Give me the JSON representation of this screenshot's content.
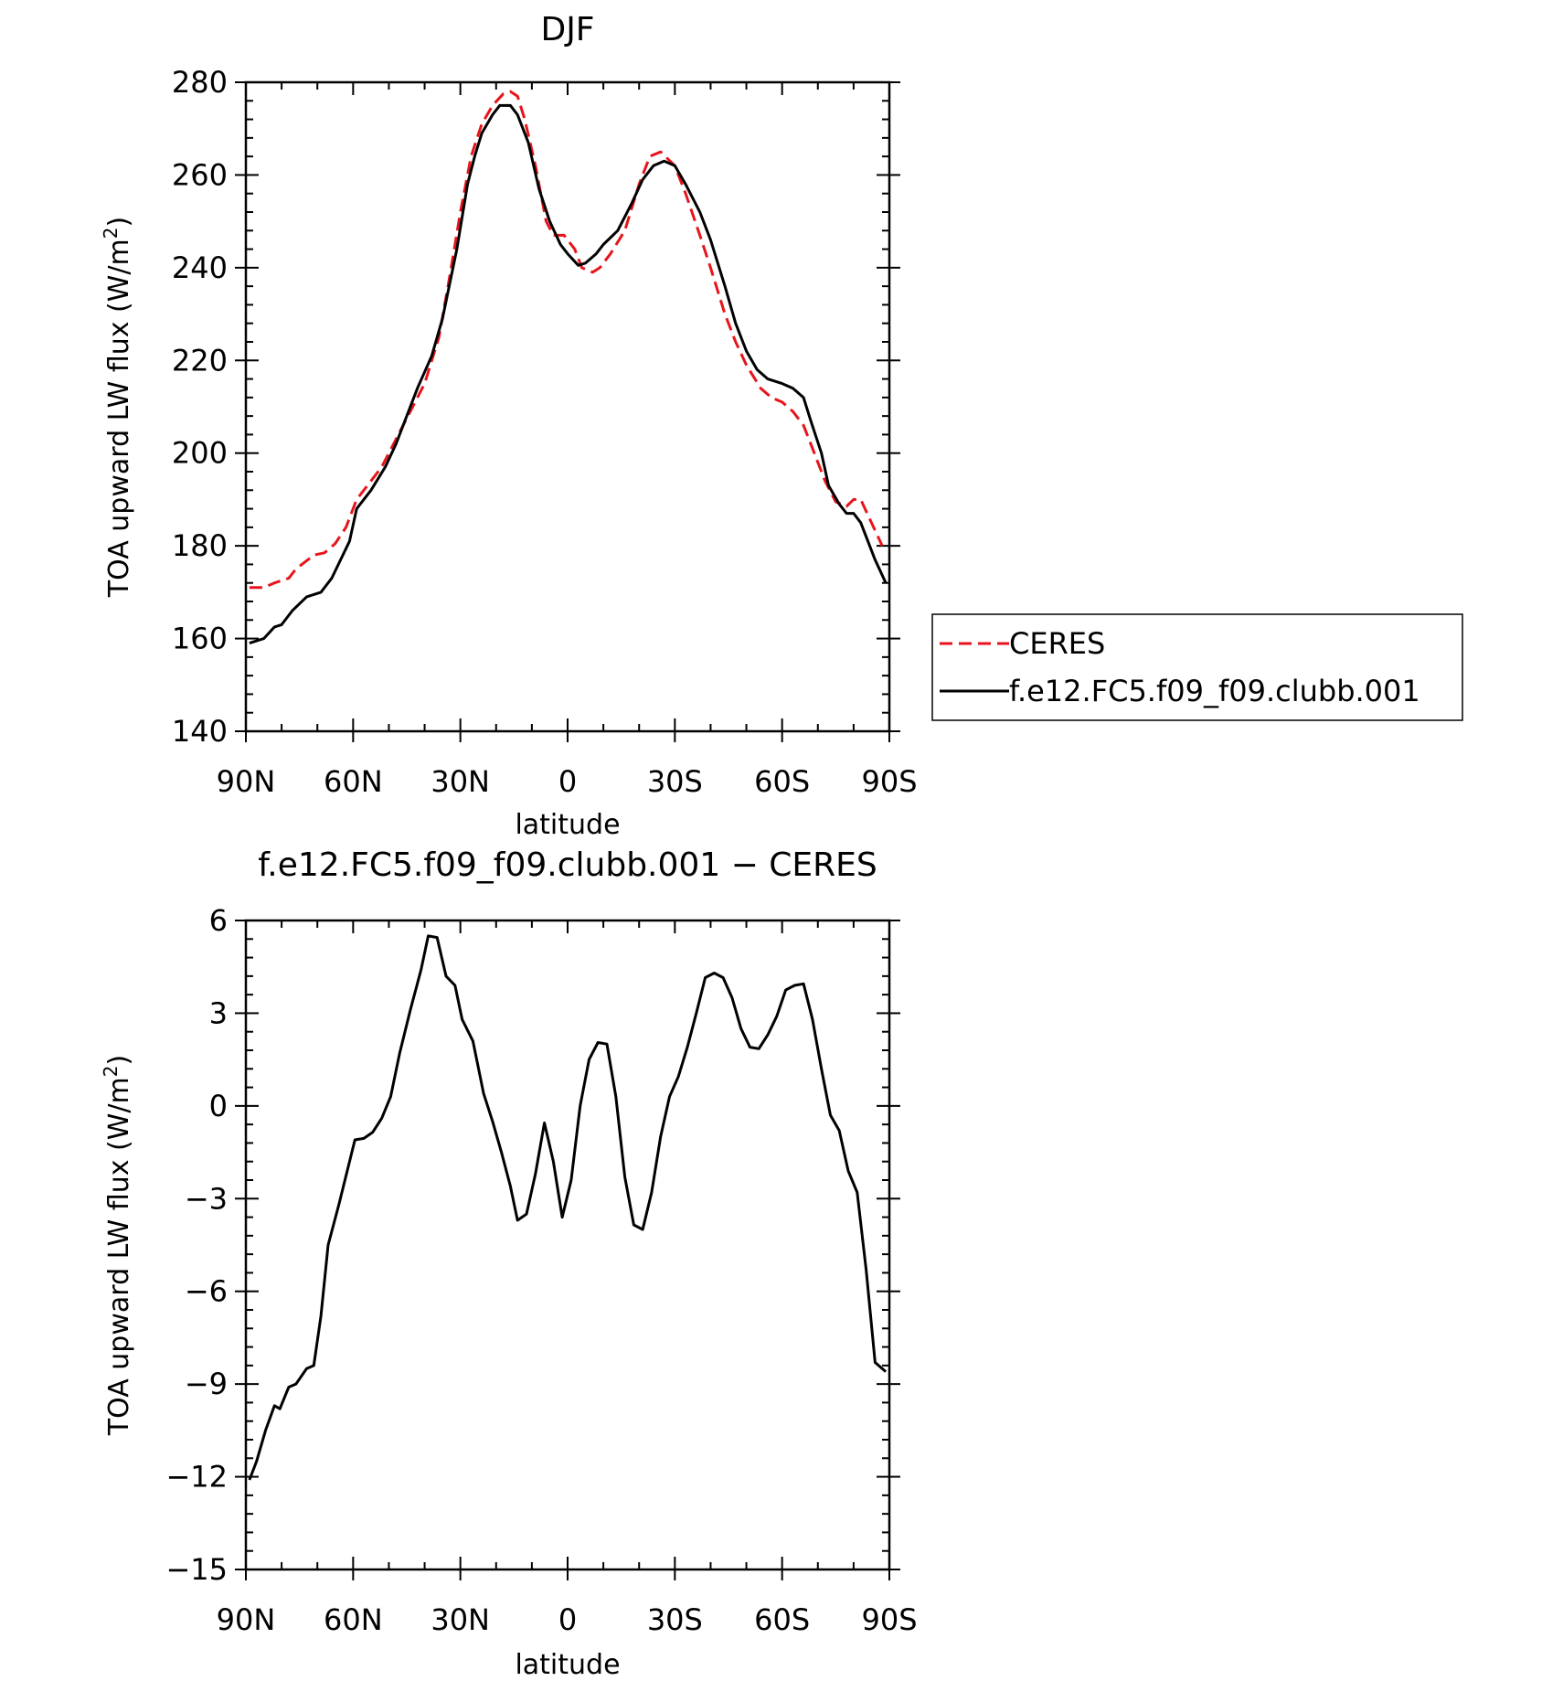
{
  "chart_data": [
    {
      "type": "line",
      "title": "DJF",
      "xlabel": "latitude",
      "ylabel": "TOA upward LW flux (W/m",
      "ylabel_sup": "2",
      "ylabel_tail": ")",
      "x_axis": "latitude, north positive (90N to 90S)",
      "xlim": [
        90,
        -90
      ],
      "xticks": [
        90,
        60,
        30,
        0,
        -30,
        -60,
        -90
      ],
      "xtick_labels": [
        "90N",
        "60N",
        "30N",
        "0",
        "30S",
        "60S",
        "90S"
      ],
      "ylim": [
        140,
        280
      ],
      "yticks": [
        140,
        160,
        180,
        200,
        220,
        240,
        260,
        280
      ],
      "ytick_labels": [
        "140",
        "160",
        "180",
        "200",
        "220",
        "240",
        "260",
        "280"
      ],
      "legend": "right",
      "series": [
        {
          "name": "CERES",
          "color": "#e8141c",
          "dash": "dashed",
          "points": [
            [
              89,
              171
            ],
            [
              85,
              171
            ],
            [
              82,
              172
            ],
            [
              78,
              173
            ],
            [
              76,
              175
            ],
            [
              71,
              178
            ],
            [
              68,
              178.5
            ],
            [
              65,
              180.5
            ],
            [
              62,
              184
            ],
            [
              59,
              190
            ],
            [
              56,
              193
            ],
            [
              52,
              197
            ],
            [
              48,
              203
            ],
            [
              44,
              209
            ],
            [
              40,
              215
            ],
            [
              36,
              225
            ],
            [
              33,
              238
            ],
            [
              30,
              252
            ],
            [
              27,
              264
            ],
            [
              24,
              271
            ],
            [
              21,
              275
            ],
            [
              18,
              277.5
            ],
            [
              16,
              278
            ],
            [
              14,
              277
            ],
            [
              12,
              272
            ],
            [
              9,
              262
            ],
            [
              6,
              250
            ],
            [
              4,
              247
            ],
            [
              1,
              247
            ],
            [
              -2,
              244
            ],
            [
              -4,
              240
            ],
            [
              -7,
              239
            ],
            [
              -9,
              240
            ],
            [
              -12,
              243
            ],
            [
              -16,
              248
            ],
            [
              -20,
              258
            ],
            [
              -23,
              264
            ],
            [
              -26,
              265
            ],
            [
              -30,
              262
            ],
            [
              -33,
              256
            ],
            [
              -37,
              247
            ],
            [
              -40,
              240
            ],
            [
              -44,
              230
            ],
            [
              -47,
              224
            ],
            [
              -50,
              219
            ],
            [
              -54,
              214
            ],
            [
              -57,
              212
            ],
            [
              -60,
              211
            ],
            [
              -63,
              209
            ],
            [
              -66,
              206
            ],
            [
              -69,
              200
            ],
            [
              -72,
              194
            ],
            [
              -75,
              189.5
            ],
            [
              -78,
              188.5
            ],
            [
              -80,
              190
            ],
            [
              -82,
              190
            ],
            [
              -85,
              185
            ],
            [
              -88,
              180
            ]
          ]
        },
        {
          "name": "f.e12.FC5.f09_f09.clubb.001",
          "color": "#000000",
          "dash": "solid",
          "points": [
            [
              89,
              159
            ],
            [
              85,
              160
            ],
            [
              82,
              162.5
            ],
            [
              80,
              163
            ],
            [
              77,
              166
            ],
            [
              73,
              169
            ],
            [
              71,
              169.5
            ],
            [
              69,
              170
            ],
            [
              66,
              173
            ],
            [
              61,
              181
            ],
            [
              59,
              188
            ],
            [
              55,
              192
            ],
            [
              51,
              197
            ],
            [
              48,
              202
            ],
            [
              45,
              208
            ],
            [
              42,
              214
            ],
            [
              38,
              221
            ],
            [
              35,
              229
            ],
            [
              31,
              244
            ],
            [
              28,
              258
            ],
            [
              26,
              264
            ],
            [
              24,
              269
            ],
            [
              21,
              273
            ],
            [
              19,
              275
            ],
            [
              16,
              275
            ],
            [
              14,
              273
            ],
            [
              11,
              267
            ],
            [
              8,
              257
            ],
            [
              5,
              250
            ],
            [
              2,
              245
            ],
            [
              0,
              243
            ],
            [
              -3,
              240.5
            ],
            [
              -5,
              241
            ],
            [
              -8,
              243
            ],
            [
              -10,
              245
            ],
            [
              -14,
              248
            ],
            [
              -18,
              254
            ],
            [
              -21,
              259
            ],
            [
              -24,
              262
            ],
            [
              -27,
              263
            ],
            [
              -30,
              262
            ],
            [
              -33,
              258
            ],
            [
              -37,
              252
            ],
            [
              -40,
              246
            ],
            [
              -44,
              236
            ],
            [
              -47,
              228
            ],
            [
              -50,
              222
            ],
            [
              -53,
              218
            ],
            [
              -56,
              216
            ],
            [
              -60,
              215
            ],
            [
              -63,
              214
            ],
            [
              -66,
              212
            ],
            [
              -68,
              207
            ],
            [
              -71,
              200
            ],
            [
              -73,
              193
            ],
            [
              -76,
              189
            ],
            [
              -78,
              187
            ],
            [
              -80,
              187
            ],
            [
              -82,
              185
            ],
            [
              -86,
              177
            ],
            [
              -89,
              172
            ]
          ]
        }
      ]
    },
    {
      "type": "line",
      "title": "f.e12.FC5.f09_f09.clubb.001 − CERES",
      "xlabel": "latitude",
      "ylabel": "TOA upward LW flux (W/m",
      "ylabel_sup": "2",
      "ylabel_tail": ")",
      "xlim": [
        90,
        -90
      ],
      "xticks": [
        90,
        60,
        30,
        0,
        -30,
        -60,
        -90
      ],
      "xtick_labels": [
        "90N",
        "60N",
        "30N",
        "0",
        "30S",
        "60S",
        "90S"
      ],
      "ylim": [
        -15,
        6
      ],
      "yticks": [
        -15,
        -12,
        -9,
        -6,
        -3,
        0,
        3,
        6
      ],
      "ytick_labels": [
        "−15",
        "−12",
        "−9",
        "−6",
        "−3",
        "0",
        "3",
        "6"
      ],
      "series": [
        {
          "name": "f.e12.FC5.f09_f09.clubb.001 − CERES",
          "color": "#000000",
          "dash": "solid",
          "points": [
            [
              89,
              -12.1
            ],
            [
              87,
              -11.5
            ],
            [
              84.5,
              -10.5
            ],
            [
              82,
              -9.7
            ],
            [
              80.5,
              -9.8
            ],
            [
              78,
              -9.1
            ],
            [
              76,
              -9.0
            ],
            [
              73,
              -8.5
            ],
            [
              71,
              -8.4
            ],
            [
              69,
              -6.8
            ],
            [
              67,
              -4.5
            ],
            [
              64,
              -3.2
            ],
            [
              59.5,
              -1.1
            ],
            [
              57,
              -1.05
            ],
            [
              54.5,
              -0.85
            ],
            [
              52,
              -0.4
            ],
            [
              49.5,
              0.3
            ],
            [
              47,
              1.7
            ],
            [
              44,
              3.1
            ],
            [
              41,
              4.4
            ],
            [
              39,
              5.5
            ],
            [
              36.5,
              5.45
            ],
            [
              34,
              4.2
            ],
            [
              31.5,
              3.9
            ],
            [
              29.5,
              2.8
            ],
            [
              26.5,
              2.1
            ],
            [
              23.5,
              0.4
            ],
            [
              21,
              -0.5
            ],
            [
              18.5,
              -1.5
            ],
            [
              16,
              -2.6
            ],
            [
              14,
              -3.7
            ],
            [
              11.5,
              -3.5
            ],
            [
              9,
              -2.2
            ],
            [
              6.5,
              -0.55
            ],
            [
              4,
              -1.8
            ],
            [
              1.5,
              -3.6
            ],
            [
              -1,
              -2.4
            ],
            [
              -3.5,
              0.0
            ],
            [
              -6,
              1.5
            ],
            [
              -8.5,
              2.05
            ],
            [
              -11,
              2.0
            ],
            [
              -13.5,
              0.3
            ],
            [
              -16,
              -2.3
            ],
            [
              -18.5,
              -3.85
            ],
            [
              -21,
              -4.0
            ],
            [
              -23.5,
              -2.8
            ],
            [
              -26,
              -1.0
            ],
            [
              -28.5,
              0.3
            ],
            [
              -31,
              0.95
            ],
            [
              -33.5,
              1.9
            ],
            [
              -36,
              3.0
            ],
            [
              -38.5,
              4.15
            ],
            [
              -41,
              4.3
            ],
            [
              -43.5,
              4.15
            ],
            [
              -46,
              3.5
            ],
            [
              -48.5,
              2.5
            ],
            [
              -51,
              1.9
            ],
            [
              -53.5,
              1.85
            ],
            [
              -56,
              2.3
            ],
            [
              -58.5,
              2.9
            ],
            [
              -61,
              3.75
            ],
            [
              -63.5,
              3.9
            ],
            [
              -66,
              3.95
            ],
            [
              -68.5,
              2.8
            ],
            [
              -71,
              1.2
            ],
            [
              -73.5,
              -0.3
            ],
            [
              -76,
              -0.8
            ],
            [
              -78.5,
              -2.1
            ],
            [
              -81,
              -2.8
            ],
            [
              -83.5,
              -5.3
            ],
            [
              -86,
              -8.3
            ],
            [
              -89,
              -8.6
            ]
          ]
        }
      ]
    }
  ]
}
